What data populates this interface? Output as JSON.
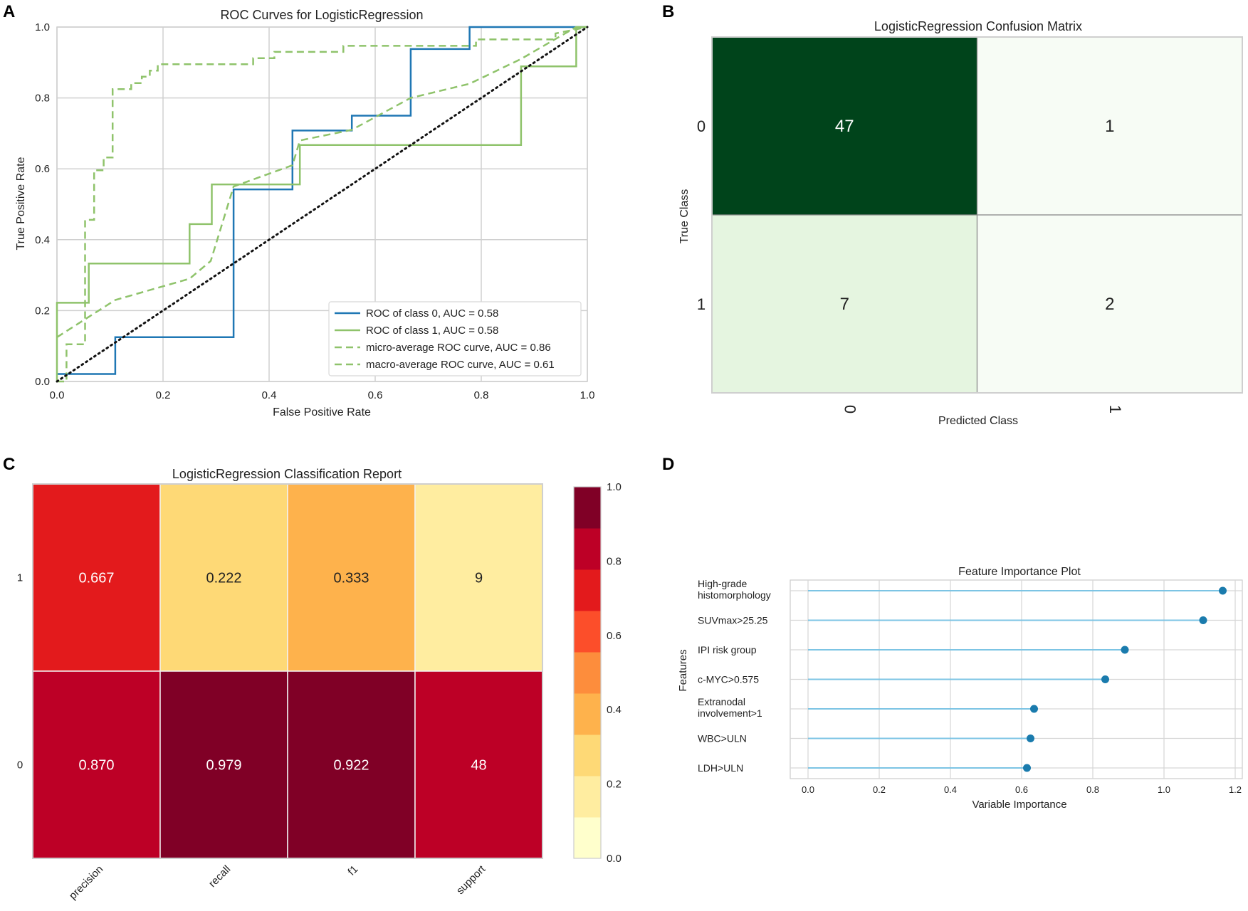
{
  "panels": {
    "a": "A",
    "b": "B",
    "c": "C",
    "d": "D"
  },
  "chart_data": [
    {
      "id": "roc",
      "type": "line",
      "title": "ROC Curves for LogisticRegression",
      "xlabel": "False Positive Rate",
      "ylabel": "True Positive Rate",
      "xlim": [
        0,
        1
      ],
      "ylim": [
        0,
        1
      ],
      "xticks": [
        "0.0",
        "0.2",
        "0.4",
        "0.6",
        "0.8",
        "1.0"
      ],
      "yticks": [
        "0.0",
        "0.2",
        "0.4",
        "0.6",
        "0.8",
        "1.0"
      ],
      "legend_position": "lower-right",
      "series": [
        {
          "name": "ROC of class 0, AUC = 0.58",
          "color": "#1f77b4",
          "style": "solid",
          "x": [
            0,
            0.11,
            0.11,
            0.333,
            0.333,
            0.444,
            0.444,
            0.556,
            0.556,
            0.667,
            0.667,
            0.778,
            0.778,
            1.0
          ],
          "y": [
            0.021,
            0.021,
            0.125,
            0.125,
            0.542,
            0.542,
            0.708,
            0.708,
            0.75,
            0.75,
            0.938,
            0.938,
            1.0,
            1.0
          ]
        },
        {
          "name": "ROC of class 1, AUC = 0.58",
          "color": "#8fc36b",
          "style": "solid",
          "x": [
            0,
            0,
            0.06,
            0.06,
            0.25,
            0.25,
            0.292,
            0.292,
            0.458,
            0.458,
            0.875,
            0.875,
            0.979,
            0.979,
            1.0
          ],
          "y": [
            0,
            0.222,
            0.222,
            0.333,
            0.333,
            0.444,
            0.444,
            0.556,
            0.556,
            0.667,
            0.667,
            0.889,
            0.889,
            1.0,
            1.0
          ]
        },
        {
          "name": "micro-average ROC curve, AUC = 0.86",
          "color": "#8fc36b",
          "style": "dashed",
          "x": [
            0,
            0.018,
            0.018,
            0.053,
            0.053,
            0.07,
            0.07,
            0.088,
            0.088,
            0.105,
            0.105,
            0.14,
            0.14,
            0.16,
            0.16,
            0.175,
            0.175,
            0.19,
            0.19,
            0.37,
            0.37,
            0.41,
            0.41,
            0.54,
            0.54,
            0.79,
            0.79,
            0.94,
            0.94,
            1.0
          ],
          "y": [
            0,
            0,
            0.105,
            0.105,
            0.456,
            0.456,
            0.596,
            0.596,
            0.632,
            0.632,
            0.825,
            0.825,
            0.842,
            0.842,
            0.86,
            0.86,
            0.877,
            0.877,
            0.895,
            0.895,
            0.912,
            0.912,
            0.93,
            0.93,
            0.947,
            0.947,
            0.965,
            0.965,
            0.982,
            1.0
          ]
        },
        {
          "name": "macro-average ROC curve, AUC = 0.61",
          "color": "#8fc36b",
          "style": "dashed",
          "x": [
            0,
            0.11,
            0.25,
            0.29,
            0.333,
            0.444,
            0.458,
            0.556,
            0.667,
            0.778,
            0.875,
            0.979,
            1.0
          ],
          "y": [
            0.125,
            0.23,
            0.29,
            0.34,
            0.55,
            0.61,
            0.68,
            0.71,
            0.8,
            0.84,
            0.91,
            1.0,
            1.0
          ]
        },
        {
          "name": "chance",
          "color": "#111111",
          "style": "dotted",
          "x": [
            0,
            1
          ],
          "y": [
            0,
            1
          ]
        }
      ]
    },
    {
      "id": "confusion",
      "type": "heatmap",
      "title": "LogisticRegression Confusion Matrix",
      "xlabel": "Predicted Class",
      "ylabel": "True Class",
      "rows": [
        "0",
        "1"
      ],
      "cols": [
        "0",
        "1"
      ],
      "values": [
        [
          47,
          1
        ],
        [
          7,
          2
        ]
      ],
      "colors": [
        [
          "#00441b",
          "#f7fcf5"
        ],
        [
          "#e5f5e0",
          "#f7fcf5"
        ]
      ],
      "text_colors": [
        [
          "#ffffff",
          "#222222"
        ],
        [
          "#222222",
          "#222222"
        ]
      ]
    },
    {
      "id": "report",
      "type": "heatmap",
      "title": "LogisticRegression Classification Report",
      "rows": [
        "1",
        "0"
      ],
      "cols": [
        "precision",
        "recall",
        "f1",
        "support"
      ],
      "labels": [
        [
          "0.667",
          "0.222",
          "0.333",
          "9"
        ],
        [
          "0.870",
          "0.979",
          "0.922",
          "48"
        ]
      ],
      "colors": [
        [
          "#e31a1c",
          "#fed976",
          "#feb24c",
          "#ffeda0"
        ],
        [
          "#bd0026",
          "#800026",
          "#800026",
          "#bd0026"
        ]
      ],
      "text_colors": [
        [
          "#ffffff",
          "#222222",
          "#222222",
          "#222222"
        ],
        [
          "#ffffff",
          "#ffffff",
          "#ffffff",
          "#ffffff"
        ]
      ],
      "colorbar": {
        "range": [
          0,
          1
        ],
        "ticks": [
          "0.0",
          "0.2",
          "0.4",
          "0.6",
          "0.8",
          "1.0"
        ],
        "colors": [
          "#ffffcc",
          "#ffeda0",
          "#fed976",
          "#feb24c",
          "#fd8d3c",
          "#fc4e2a",
          "#e31a1c",
          "#bd0026",
          "#800026"
        ]
      }
    },
    {
      "id": "importance",
      "type": "scatter",
      "title": "Feature Importance Plot",
      "xlabel": "Variable Importance",
      "ylabel": "Features",
      "xlim": [
        -0.05,
        1.22
      ],
      "xticks": [
        "0.0",
        "0.2",
        "0.4",
        "0.6",
        "0.8",
        "1.0",
        "1.2"
      ],
      "features": [
        {
          "label": [
            "High-grade",
            "histomorphology"
          ],
          "value": 1.165
        },
        {
          "label": [
            "SUVmax>25.25"
          ],
          "value": 1.11
        },
        {
          "label": [
            "IPI risk group"
          ],
          "value": 0.89
        },
        {
          "label": [
            "c-MYC>0.575"
          ],
          "value": 0.835
        },
        {
          "label": [
            "Extranodal",
            "involvement>1"
          ],
          "value": 0.635
        },
        {
          "label": [
            "WBC>ULN"
          ],
          "value": 0.625
        },
        {
          "label": [
            "LDH>ULN"
          ],
          "value": 0.615
        }
      ],
      "line_color": "#7cc4e4",
      "dot_color": "#1a7bad"
    }
  ]
}
